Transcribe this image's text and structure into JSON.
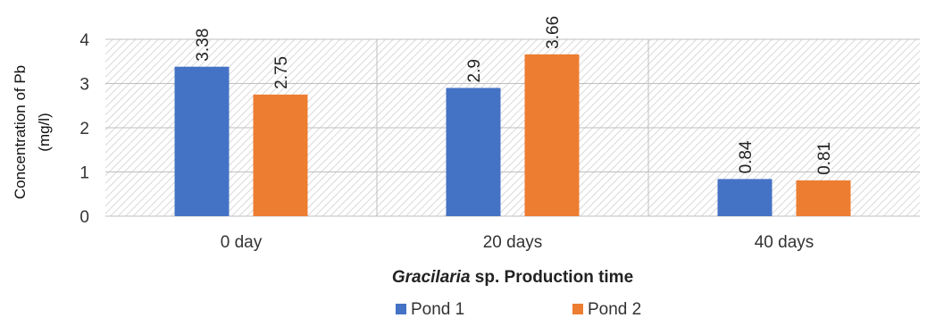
{
  "chart_data": {
    "type": "bar",
    "categories": [
      "0 day",
      "20 days",
      "40 days"
    ],
    "series": [
      {
        "name": "Pond 1",
        "values": [
          3.38,
          2.9,
          0.84
        ],
        "color": "#4472C4"
      },
      {
        "name": "Pond 2",
        "values": [
          2.75,
          3.66,
          0.81
        ],
        "color": "#ED7D31"
      }
    ],
    "data_labels": [
      [
        "3.38",
        "2.9",
        "0.84"
      ],
      [
        "2.75",
        "3.66",
        "0.81"
      ]
    ],
    "ylabel_line1": "Concentration of Pb",
    "ylabel_line2": "(mg/l)",
    "xlabel_italic": "Gracilaria",
    "xlabel_rest": " sp. Production time",
    "ylim": [
      0,
      4
    ],
    "yticks": [
      "0",
      "1",
      "2",
      "3",
      "4"
    ],
    "grid": true,
    "background": "hatched",
    "legend_position": "bottom"
  }
}
